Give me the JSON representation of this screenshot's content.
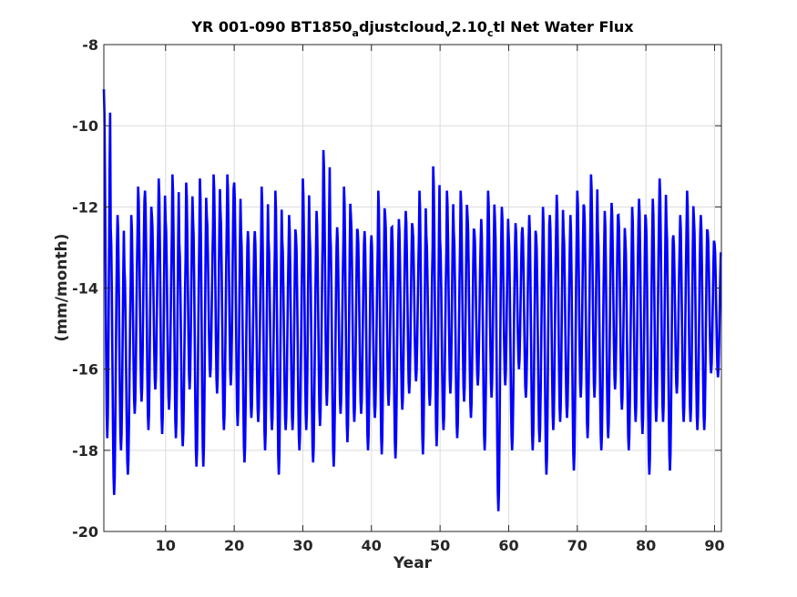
{
  "chart_data": {
    "type": "line",
    "title_parts": [
      {
        "text": "YR 001-090 BT1850",
        "sub": false
      },
      {
        "text": "a",
        "sub": true
      },
      {
        "text": "djustcloud",
        "sub": false
      },
      {
        "text": "v",
        "sub": true
      },
      {
        "text": "2.10",
        "sub": false
      },
      {
        "text": "c",
        "sub": true
      },
      {
        "text": "tl Net Water Flux",
        "sub": false
      }
    ],
    "xlabel": "Year",
    "ylabel": "(mm/month)",
    "xlim": [
      1,
      91
    ],
    "ylim": [
      -20,
      -8
    ],
    "xticks": [
      10,
      20,
      30,
      40,
      50,
      60,
      70,
      80,
      90
    ],
    "yticks": [
      -20,
      -18,
      -16,
      -14,
      -12,
      -10,
      -8
    ],
    "grid": true,
    "line_color": "#0000ff",
    "series": [
      {
        "yearly_summer_peaks": [
          -9.1,
          -12.5,
          -12.2,
          -13.5,
          -12.2,
          -11.5,
          -11.6,
          -12.2,
          -11.3,
          -12.3,
          -11.2,
          -12.9,
          -11.4,
          -12.3,
          -11.3,
          -12.2,
          -11.2,
          -12.1,
          -11.2,
          -11.4,
          -12.6,
          -12.6,
          -12.6,
          -11.5,
          -12.8,
          -11.6,
          -12.8,
          -12.2,
          -12.7,
          -11.3,
          -12.7,
          -12.1,
          -10.6,
          -12.6,
          -12.5,
          -11.5,
          -12.2,
          -12.6,
          -12.6,
          -12.7,
          -11.6,
          -12.2,
          -12.5,
          -12.3,
          -12.1,
          -12.5,
          -11.6,
          -12.7,
          -11.0,
          -12.8,
          -11.6,
          -12.6,
          -11.6,
          -12.2,
          -12.6,
          -12.3,
          -11.6,
          -12.3,
          -12.0,
          -12.7,
          -12.4,
          -12.5,
          -12.2,
          -12.7,
          -12.0,
          -12.2,
          -11.7,
          -12.6,
          -12.2,
          -11.6,
          -12.0,
          -11.2,
          -12.6,
          -12.1,
          -11.9,
          -12.2,
          -12.8,
          -12.0,
          -11.8,
          -12.3,
          -11.8,
          -11.3,
          -12.4,
          -12.7,
          -12.2,
          -11.6,
          -12.3,
          -12.2,
          -12.6,
          -12.9
        ],
        "yearly_winter_troughs": [
          -17.7,
          -19.1,
          -18.0,
          -18.6,
          -17.1,
          -16.8,
          -17.5,
          -16.5,
          -17.6,
          -17.0,
          -17.7,
          -17.9,
          -16.5,
          -18.4,
          -18.4,
          -16.2,
          -16.6,
          -17.5,
          -16.4,
          -17.4,
          -18.3,
          -17.2,
          -17.3,
          -18.0,
          -17.5,
          -18.6,
          -17.5,
          -17.5,
          -18.0,
          -17.5,
          -18.3,
          -17.4,
          -16.9,
          -18.4,
          -17.1,
          -17.8,
          -17.3,
          -17.1,
          -18.0,
          -17.2,
          -18.1,
          -16.9,
          -18.2,
          -17.0,
          -16.6,
          -16.3,
          -18.1,
          -16.9,
          -17.9,
          -17.5,
          -16.6,
          -17.7,
          -16.8,
          -17.2,
          -16.4,
          -18.0,
          -16.7,
          -19.5,
          -16.4,
          -18.0,
          -16.0,
          -16.7,
          -18.0,
          -17.8,
          -18.6,
          -17.5,
          -17.3,
          -17.2,
          -18.5,
          -16.7,
          -17.7,
          -16.7,
          -18.0,
          -17.7,
          -16.5,
          -17.0,
          -18.0,
          -17.3,
          -17.6,
          -18.6,
          -17.3,
          -17.3,
          -18.5,
          -16.6,
          -17.3,
          -17.3,
          -17.5,
          -17.5,
          -16.1,
          -16.2
        ]
      }
    ]
  }
}
